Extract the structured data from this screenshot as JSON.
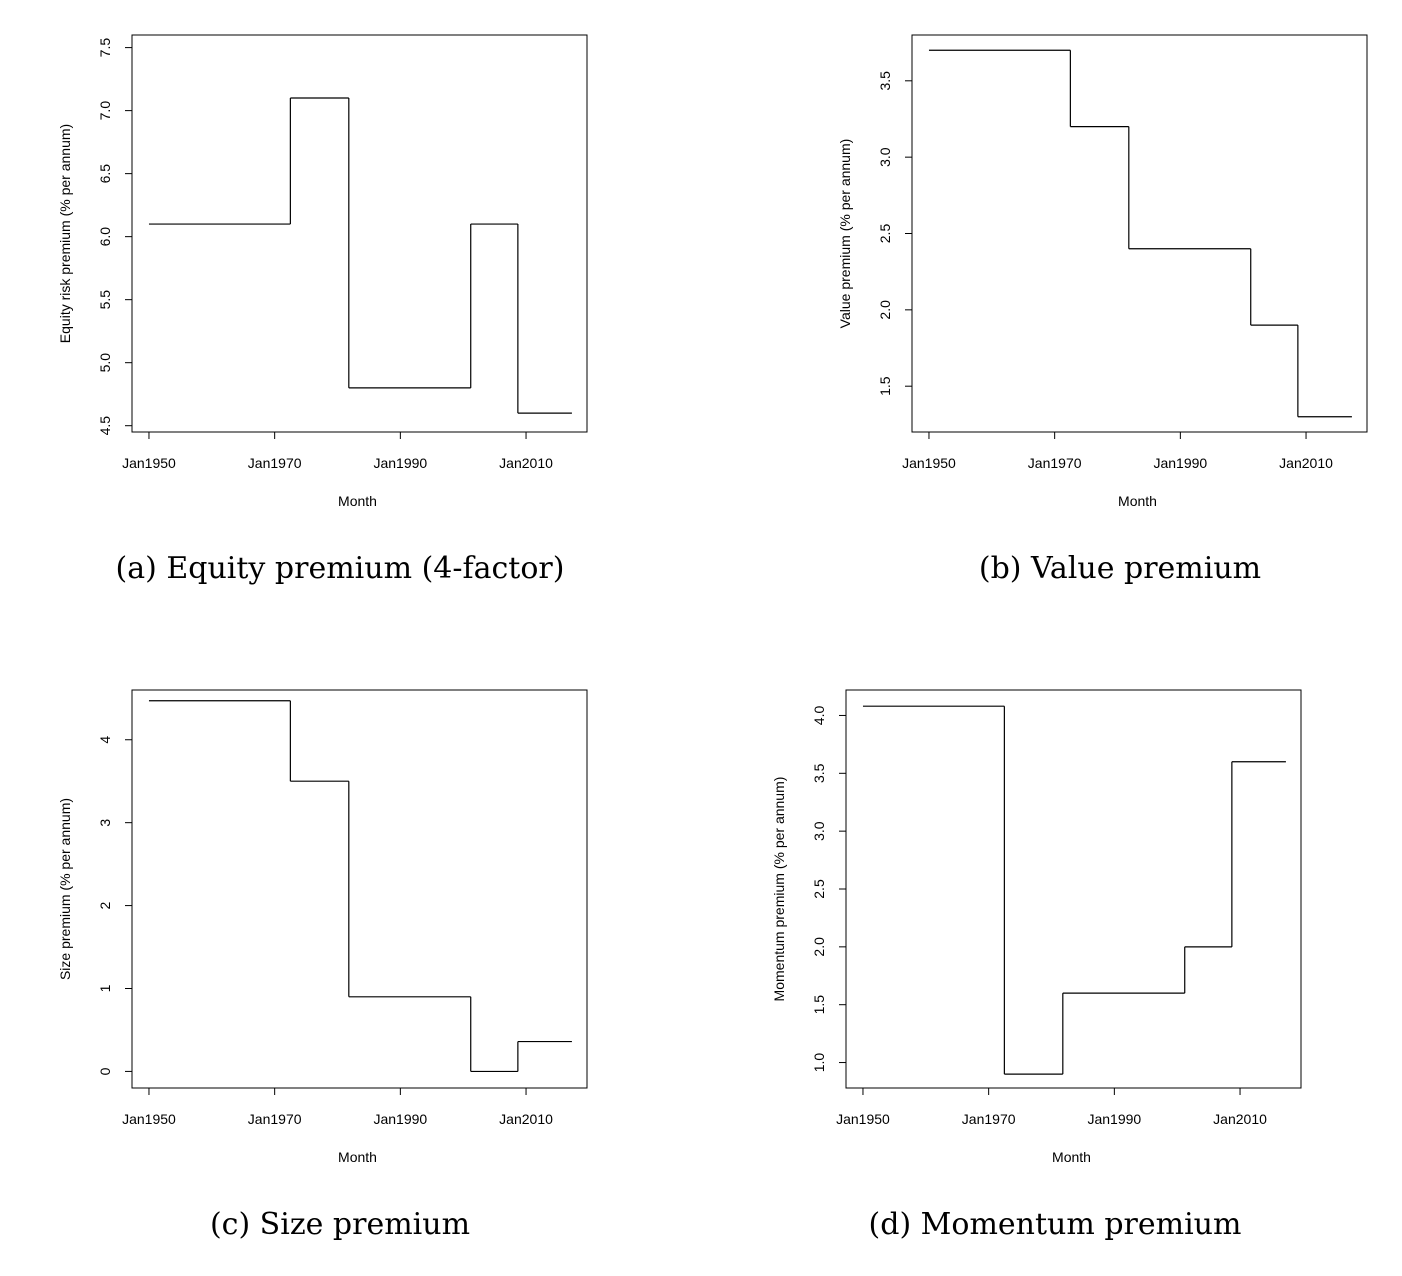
{
  "chart_data": [
    {
      "type": "line",
      "step": true,
      "title": "",
      "caption": "(a) Equity premium (4-factor)",
      "xlabel": "Month",
      "ylabel": "Equity risk premium (% per annum)",
      "xlim": [
        1947.3,
        2019.7
      ],
      "ylim": [
        4.45,
        7.6
      ],
      "xticks": [
        1950,
        1970,
        1990,
        2010
      ],
      "xtick_labels": [
        "Jan1950",
        "Jan1970",
        "Jan1990",
        "Jan2010"
      ],
      "yticks": [
        4.5,
        5.0,
        5.5,
        6.0,
        6.5,
        7.0,
        7.5
      ],
      "ytick_labels": [
        "4.5",
        "5.0",
        "5.5",
        "6.0",
        "6.5",
        "7.0",
        "7.5"
      ],
      "steps": [
        {
          "start": 1950,
          "end": 1972.5,
          "value": 6.1
        },
        {
          "start": 1972.5,
          "end": 1981.8,
          "value": 7.1
        },
        {
          "start": 1981.8,
          "end": 2001.2,
          "value": 4.8
        },
        {
          "start": 2001.2,
          "end": 2008.7,
          "value": 6.1
        },
        {
          "start": 2008.7,
          "end": 2017.3,
          "value": 4.6
        }
      ]
    },
    {
      "type": "line",
      "step": true,
      "title": "",
      "caption": "(b) Value premium",
      "xlabel": "Month",
      "ylabel": "Value premium (% per annum)",
      "xlim": [
        1947.3,
        2019.7
      ],
      "ylim": [
        1.2,
        3.8
      ],
      "xticks": [
        1950,
        1970,
        1990,
        2010
      ],
      "xtick_labels": [
        "Jan1950",
        "Jan1970",
        "Jan1990",
        "Jan2010"
      ],
      "yticks": [
        1.5,
        2.0,
        2.5,
        3.0,
        3.5
      ],
      "ytick_labels": [
        "1.5",
        "2.0",
        "2.5",
        "3.0",
        "3.5"
      ],
      "steps": [
        {
          "start": 1950,
          "end": 1972.5,
          "value": 3.7
        },
        {
          "start": 1972.5,
          "end": 1981.8,
          "value": 3.2
        },
        {
          "start": 1981.8,
          "end": 2001.2,
          "value": 2.4
        },
        {
          "start": 2001.2,
          "end": 2008.7,
          "value": 1.9
        },
        {
          "start": 2008.7,
          "end": 2017.3,
          "value": 1.3
        }
      ]
    },
    {
      "type": "line",
      "step": true,
      "title": "",
      "caption": "(c) Size premium",
      "xlabel": "Month",
      "ylabel": "Size premium (% per annum)",
      "xlim": [
        1947.3,
        2019.7
      ],
      "ylim": [
        -0.2,
        4.6
      ],
      "xticks": [
        1950,
        1970,
        1990,
        2010
      ],
      "xtick_labels": [
        "Jan1950",
        "Jan1970",
        "Jan1990",
        "Jan2010"
      ],
      "yticks": [
        0,
        1,
        2,
        3,
        4
      ],
      "ytick_labels": [
        "0",
        "1",
        "2",
        "3",
        "4"
      ],
      "steps": [
        {
          "start": 1950,
          "end": 1972.5,
          "value": 4.47
        },
        {
          "start": 1972.5,
          "end": 1981.8,
          "value": 3.5
        },
        {
          "start": 1981.8,
          "end": 2001.2,
          "value": 0.9
        },
        {
          "start": 2001.2,
          "end": 2008.7,
          "value": 0.0
        },
        {
          "start": 2008.7,
          "end": 2017.3,
          "value": 0.36
        }
      ]
    },
    {
      "type": "line",
      "step": true,
      "title": "",
      "caption": "(d) Momentum premium",
      "xlabel": "Month",
      "ylabel": "Momentum premium (% per annum)",
      "xlim": [
        1947.3,
        2019.7
      ],
      "ylim": [
        0.78,
        4.22
      ],
      "xticks": [
        1950,
        1970,
        1990,
        2010
      ],
      "xtick_labels": [
        "Jan1950",
        "Jan1970",
        "Jan1990",
        "Jan2010"
      ],
      "yticks": [
        1.0,
        1.5,
        2.0,
        2.5,
        3.0,
        3.5,
        4.0
      ],
      "ytick_labels": [
        "1.0",
        "1.5",
        "2.0",
        "2.5",
        "3.0",
        "3.5",
        "4.0"
      ],
      "steps": [
        {
          "start": 1950,
          "end": 1972.5,
          "value": 4.08
        },
        {
          "start": 1972.5,
          "end": 1981.8,
          "value": 0.9
        },
        {
          "start": 1981.8,
          "end": 2001.2,
          "value": 1.6
        },
        {
          "start": 2001.2,
          "end": 2008.7,
          "value": 2.0
        },
        {
          "start": 2008.7,
          "end": 2017.3,
          "value": 3.6
        }
      ]
    }
  ]
}
